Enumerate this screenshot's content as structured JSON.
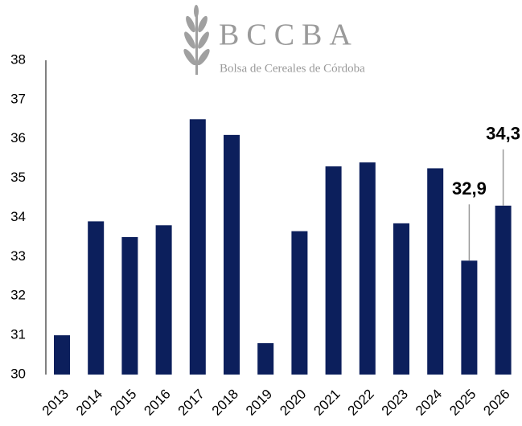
{
  "chart_data": {
    "type": "bar",
    "logo": {
      "title": "BCCBA",
      "subtitle": "Bolsa de Cereales de Córdoba"
    },
    "categories": [
      "2013",
      "2014",
      "2015",
      "2016",
      "2017",
      "2018",
      "2019",
      "2020",
      "2021",
      "2022",
      "2023",
      "2024",
      "2025",
      "2026"
    ],
    "values": [
      31.0,
      33.9,
      33.5,
      33.8,
      36.5,
      36.1,
      30.8,
      33.65,
      35.3,
      35.4,
      33.85,
      35.25,
      32.9,
      34.3
    ],
    "value_labels": [
      null,
      null,
      null,
      null,
      null,
      null,
      null,
      null,
      null,
      null,
      null,
      null,
      "32,9",
      "34,3"
    ],
    "color": "#0c1f5c",
    "ylim": [
      30,
      38
    ],
    "yticks": [
      30,
      31,
      32,
      33,
      34,
      35,
      36,
      37,
      38
    ],
    "grid": false
  }
}
